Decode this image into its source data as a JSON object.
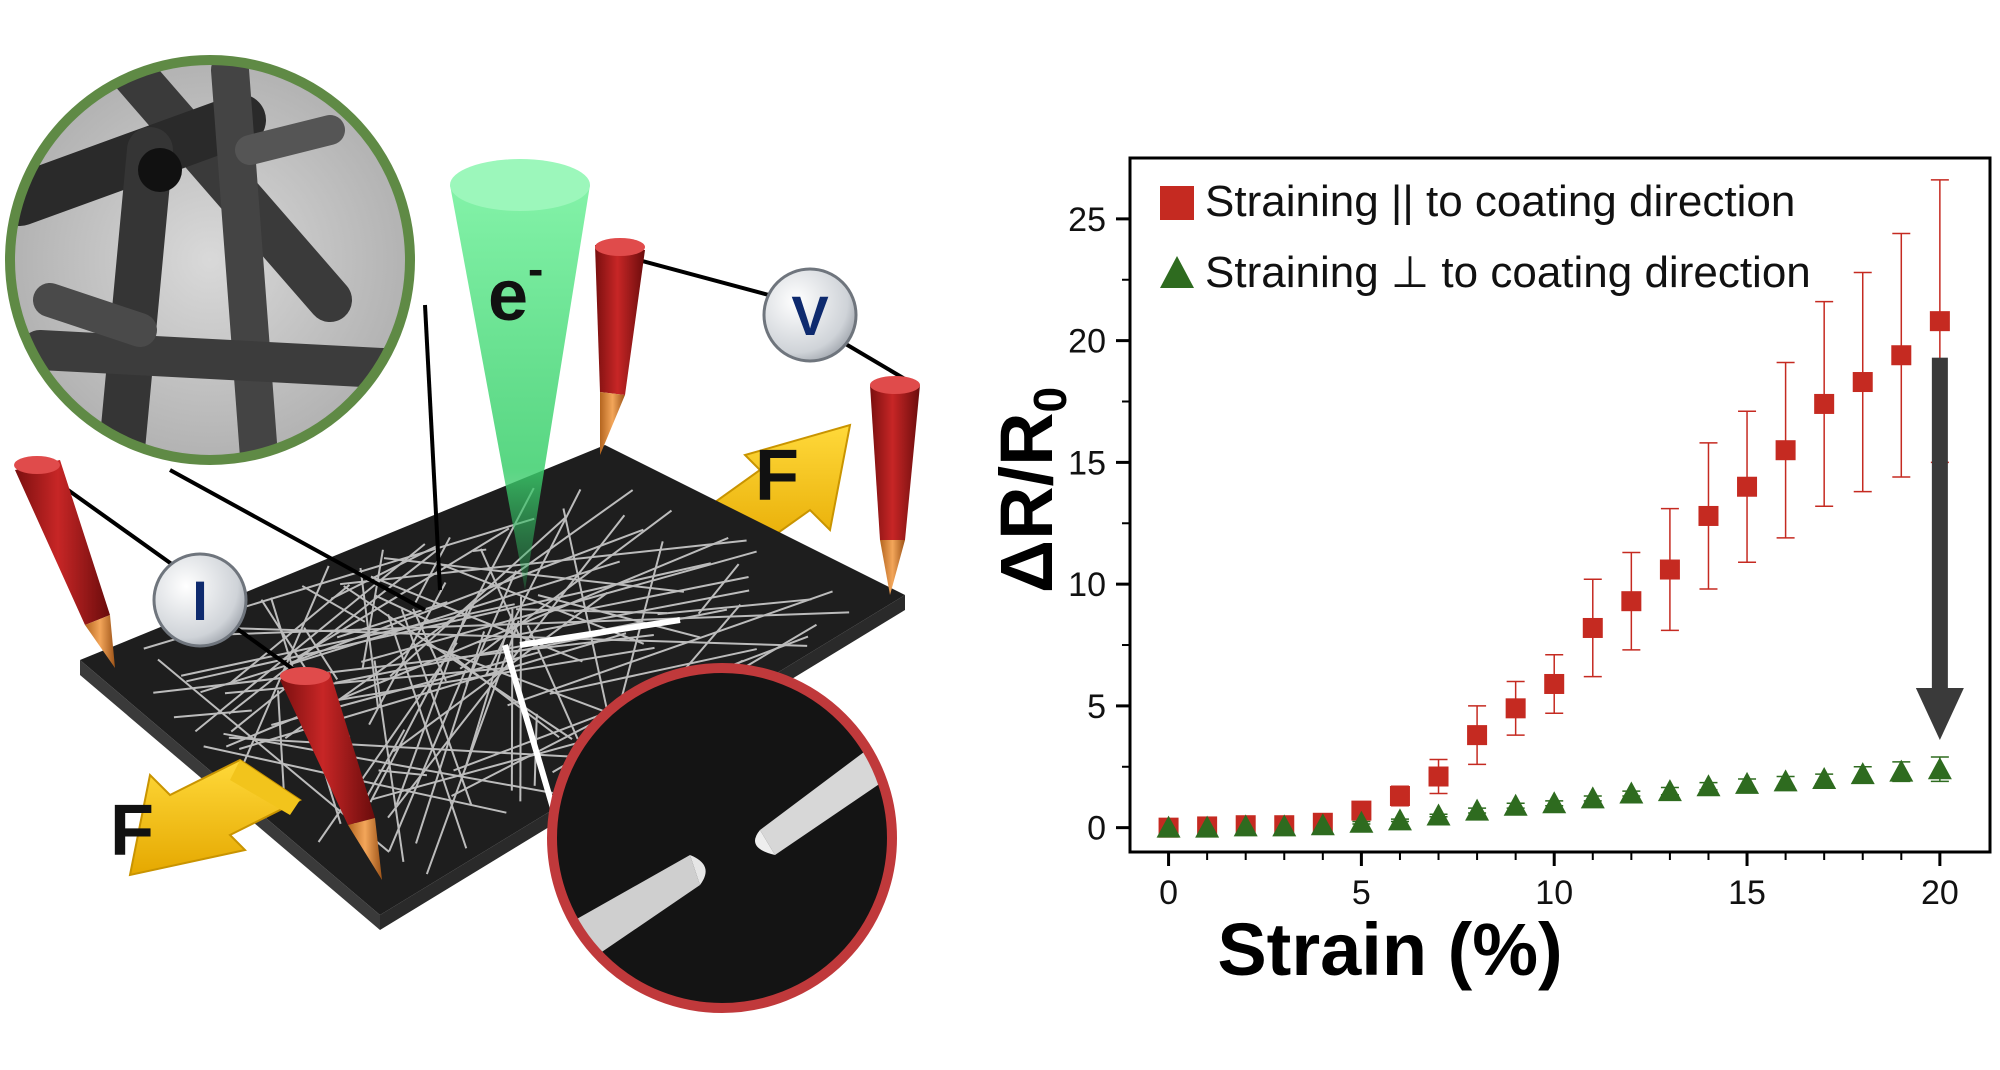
{
  "illustration": {
    "electron_label": "e",
    "electron_sup": "-",
    "voltmeter_label": "V",
    "ammeter_label": "I",
    "force_label_right": "F",
    "force_label_left": "F",
    "colors": {
      "probe_red": "#b31b1b",
      "probe_tip": "#e8923a",
      "force_arrow": "#f5c200",
      "beam_green": "#6ee89a",
      "tem_ring": "#5f8a45",
      "sem_ring": "#c0393b",
      "substrate": "#1c1c1c"
    }
  },
  "chart_data": {
    "type": "scatter",
    "xlabel": "Strain (%)",
    "ylabel_main": "ΔR/R",
    "ylabel_sub": "0",
    "xlim": [
      -1,
      21.3
    ],
    "ylim": [
      -1,
      27.5
    ],
    "xticks": [
      0,
      5,
      10,
      15,
      20
    ],
    "yticks": [
      0,
      5,
      10,
      15,
      20,
      25
    ],
    "grid": false,
    "legend_position": "top-left",
    "series": [
      {
        "name": "Straining || to coating direction",
        "marker": "square",
        "color": "#c52a21",
        "x": [
          0,
          1,
          2,
          3,
          4,
          5,
          6,
          7,
          8,
          9,
          10,
          11,
          12,
          13,
          14,
          15,
          16,
          17,
          18,
          19,
          20
        ],
        "y": [
          0.0,
          0.05,
          0.1,
          0.1,
          0.2,
          0.7,
          1.3,
          2.1,
          3.8,
          4.9,
          5.9,
          8.2,
          9.3,
          10.6,
          12.8,
          14.0,
          15.5,
          17.4,
          18.3,
          19.4,
          20.8
        ],
        "err": [
          0.1,
          0.1,
          0.1,
          0.1,
          0.15,
          0.3,
          0.4,
          0.7,
          1.2,
          1.1,
          1.2,
          2.0,
          2.0,
          2.5,
          3.0,
          3.1,
          3.6,
          4.2,
          4.5,
          5.0,
          5.8
        ]
      },
      {
        "name": "Straining ⊥ to coating direction",
        "marker": "triangle",
        "color": "#2e6b1f",
        "x": [
          0,
          1,
          2,
          3,
          4,
          5,
          6,
          7,
          8,
          9,
          10,
          11,
          12,
          13,
          14,
          15,
          16,
          17,
          18,
          19,
          20
        ],
        "y": [
          0.0,
          0.0,
          0.05,
          0.05,
          0.1,
          0.2,
          0.3,
          0.5,
          0.7,
          0.9,
          1.0,
          1.2,
          1.4,
          1.5,
          1.7,
          1.8,
          1.9,
          2.0,
          2.2,
          2.3,
          2.4
        ],
        "err": [
          0.05,
          0.05,
          0.05,
          0.05,
          0.05,
          0.05,
          0.05,
          0.05,
          0.1,
          0.1,
          0.1,
          0.1,
          0.1,
          0.15,
          0.15,
          0.2,
          0.2,
          0.2,
          0.3,
          0.4,
          0.5
        ]
      }
    ],
    "annotation_arrow": {
      "x": 20,
      "y_from": 19.3,
      "y_to": 3.6,
      "color": "#3a3a3a"
    }
  }
}
